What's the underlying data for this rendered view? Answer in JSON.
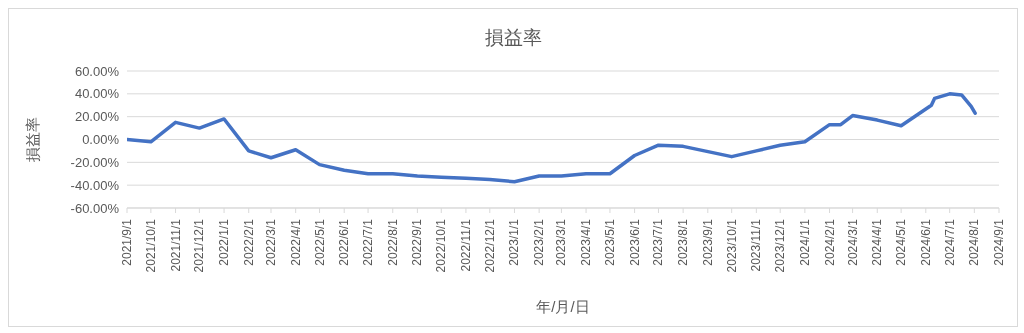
{
  "chart_data": {
    "type": "line",
    "title": "損益率",
    "xlabel": "年/月/日",
    "ylabel": "損益率",
    "x": [
      "2021-09-01",
      "2021-10-01",
      "2021-11-01",
      "2021-12-01",
      "2022-01-01",
      "2022-02-01",
      "2022-03-01",
      "2022-04-01",
      "2022-05-01",
      "2022-06-01",
      "2022-07-01",
      "2022-08-01",
      "2022-09-01",
      "2022-10-01",
      "2022-11-01",
      "2022-12-01",
      "2023-01-01",
      "2023-02-01",
      "2023-03-01",
      "2023-04-01",
      "2023-05-01",
      "2023-06-01",
      "2023-07-01",
      "2023-08-01",
      "2023-10-01",
      "2023-11-01",
      "2023-12-01",
      "2024-01-01",
      "2024-02-01",
      "2024-02-15",
      "2024-03-01",
      "2024-04-01",
      "2024-05-01",
      "2024-06-08",
      "2024-06-12",
      "2024-07-01",
      "2024-07-16",
      "2024-07-28",
      "2024-08-02"
    ],
    "series": [
      {
        "color": "#4472c4",
        "values": [
          0,
          -2,
          15,
          10,
          18,
          -10,
          -16,
          -9,
          -22,
          -27,
          -30,
          -30,
          -32,
          -33,
          -34,
          -35,
          -37,
          -32,
          -32,
          -30,
          -30,
          -14,
          -5,
          -6,
          -15,
          -10,
          -5,
          -2,
          13,
          13,
          21,
          17,
          12,
          30,
          36,
          40,
          39,
          29,
          23
        ]
      }
    ],
    "xlim": [
      "2021-09-01",
      "2024-09-01"
    ],
    "xticks": [
      {
        "value": "2021-09-01",
        "label": "2021/9/1"
      },
      {
        "value": "2021-10-01",
        "label": "2021/10/1"
      },
      {
        "value": "2021-11-01",
        "label": "2021/11/1"
      },
      {
        "value": "2021-12-01",
        "label": "2021/12/1"
      },
      {
        "value": "2022-01-01",
        "label": "2022/1/1"
      },
      {
        "value": "2022-02-01",
        "label": "2022/2/1"
      },
      {
        "value": "2022-03-01",
        "label": "2022/3/1"
      },
      {
        "value": "2022-04-01",
        "label": "2022/4/1"
      },
      {
        "value": "2022-05-01",
        "label": "2022/5/1"
      },
      {
        "value": "2022-06-01",
        "label": "2022/6/1"
      },
      {
        "value": "2022-07-01",
        "label": "2022/7/1"
      },
      {
        "value": "2022-08-01",
        "label": "2022/8/1"
      },
      {
        "value": "2022-09-01",
        "label": "2022/9/1"
      },
      {
        "value": "2022-10-01",
        "label": "2022/10/1"
      },
      {
        "value": "2022-11-01",
        "label": "2022/11/1"
      },
      {
        "value": "2022-12-01",
        "label": "2022/12/1"
      },
      {
        "value": "2023-01-01",
        "label": "2023/1/1"
      },
      {
        "value": "2023-02-01",
        "label": "2023/2/1"
      },
      {
        "value": "2023-03-01",
        "label": "2023/3/1"
      },
      {
        "value": "2023-04-01",
        "label": "2023/4/1"
      },
      {
        "value": "2023-05-01",
        "label": "2023/5/1"
      },
      {
        "value": "2023-06-01",
        "label": "2023/6/1"
      },
      {
        "value": "2023-07-01",
        "label": "2023/7/1"
      },
      {
        "value": "2023-08-01",
        "label": "2023/8/1"
      },
      {
        "value": "2023-09-01",
        "label": "2023/9/1"
      },
      {
        "value": "2023-10-01",
        "label": "2023/10/1"
      },
      {
        "value": "2023-11-01",
        "label": "2023/11/1"
      },
      {
        "value": "2023-12-01",
        "label": "2023/12/1"
      },
      {
        "value": "2024-01-01",
        "label": "2024/1/1"
      },
      {
        "value": "2024-02-01",
        "label": "2024/2/1"
      },
      {
        "value": "2024-03-01",
        "label": "2024/3/1"
      },
      {
        "value": "2024-04-01",
        "label": "2024/4/1"
      },
      {
        "value": "2024-05-01",
        "label": "2024/5/1"
      },
      {
        "value": "2024-06-01",
        "label": "2024/6/1"
      },
      {
        "value": "2024-07-01",
        "label": "2024/7/1"
      },
      {
        "value": "2024-08-01",
        "label": "2024/8/1"
      },
      {
        "value": "2024-09-01",
        "label": "2024/9/1"
      }
    ],
    "ylim": [
      -60,
      60
    ],
    "yticks": [
      {
        "value": -60,
        "label": "-60.00%"
      },
      {
        "value": -40,
        "label": "-40.00%"
      },
      {
        "value": -20,
        "label": "-20.00%"
      },
      {
        "value": 0,
        "label": "0.00%"
      },
      {
        "value": 20,
        "label": "20.00%"
      },
      {
        "value": 40,
        "label": "40.00%"
      },
      {
        "value": 60,
        "label": "60.00%"
      }
    ],
    "grid": "y",
    "legend": false,
    "marker": "none",
    "line_style": "solid"
  }
}
